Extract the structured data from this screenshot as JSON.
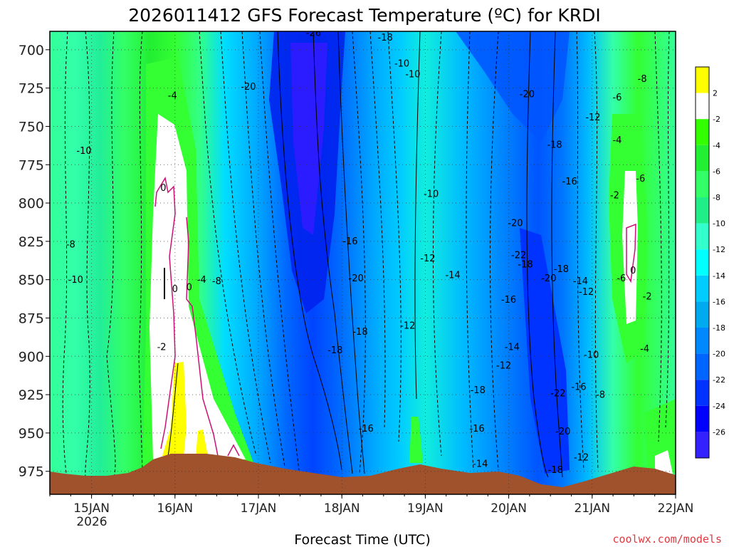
{
  "chart_data": {
    "type": "heatmap",
    "title": "2026011412 GFS Forecast Temperature (ºC) for KRDI",
    "xlabel": "Forecast Time (UTC)",
    "ylabel": "",
    "credit": "coolwx.com/models",
    "x_ticks": [
      "15JAN",
      "16JAN",
      "17JAN",
      "18JAN",
      "19JAN",
      "20JAN",
      "21JAN",
      "22JAN"
    ],
    "x_year": "2026",
    "xlim": [
      14.5,
      22.0
    ],
    "y_ticks": [
      "700",
      "725",
      "750",
      "775",
      "800",
      "825",
      "850",
      "875",
      "900",
      "925",
      "950",
      "975"
    ],
    "ylim": [
      688,
      990
    ],
    "y_inverted": true,
    "grid": true,
    "colorbar": {
      "labels": [
        "2",
        "-2",
        "-4",
        "-6",
        "-8",
        "-10",
        "-12",
        "-14",
        "-16",
        "-18",
        "-20",
        "-22",
        "-24",
        "-26"
      ],
      "colors": [
        "#ffff00",
        "#ffffff",
        "#33ff00",
        "#22ee33",
        "#33ff66",
        "#22ee88",
        "#33ffcc",
        "#00ffff",
        "#00ccff",
        "#00aaee",
        "#0088ff",
        "#0066ff",
        "#0033ff",
        "#0000ff",
        "#3322ff"
      ]
    },
    "contour_labels": [
      {
        "text": "-26",
        "t": 17.66,
        "p": 691
      },
      {
        "text": "-18",
        "t": 18.52,
        "p": 694
      },
      {
        "text": "-20",
        "t": 16.88,
        "p": 726
      },
      {
        "text": "-10",
        "t": 18.72,
        "p": 711
      },
      {
        "text": "-10",
        "t": 18.85,
        "p": 718
      },
      {
        "text": "-20",
        "t": 20.22,
        "p": 731
      },
      {
        "text": "-8",
        "t": 21.6,
        "p": 721
      },
      {
        "text": "-6",
        "t": 21.3,
        "p": 733
      },
      {
        "text": "-4",
        "t": 15.97,
        "p": 732
      },
      {
        "text": "-12",
        "t": 21.01,
        "p": 746
      },
      {
        "text": "-10",
        "t": 14.91,
        "p": 768
      },
      {
        "text": "-18",
        "t": 20.55,
        "p": 764
      },
      {
        "text": "-4",
        "t": 21.3,
        "p": 761
      },
      {
        "text": "-6",
        "t": 21.58,
        "p": 786
      },
      {
        "text": "-16",
        "t": 20.73,
        "p": 788
      },
      {
        "text": "-2",
        "t": 21.27,
        "p": 797
      },
      {
        "text": "0",
        "t": 15.86,
        "p": 792
      },
      {
        "text": "-10",
        "t": 19.07,
        "p": 796
      },
      {
        "text": "-20",
        "t": 20.08,
        "p": 815
      },
      {
        "text": "-16",
        "t": 18.1,
        "p": 827
      },
      {
        "text": "-8",
        "t": 14.75,
        "p": 829
      },
      {
        "text": "-22",
        "t": 20.12,
        "p": 836
      },
      {
        "text": "-12",
        "t": 19.03,
        "p": 838
      },
      {
        "text": "-18",
        "t": 20.2,
        "p": 842
      },
      {
        "text": "-18",
        "t": 20.63,
        "p": 845
      },
      {
        "text": "-14",
        "t": 19.33,
        "p": 849
      },
      {
        "text": "-20",
        "t": 18.17,
        "p": 851
      },
      {
        "text": "-20",
        "t": 20.48,
        "p": 851
      },
      {
        "text": "-6",
        "t": 21.35,
        "p": 851
      },
      {
        "text": "0",
        "t": 21.49,
        "p": 846
      },
      {
        "text": "-10",
        "t": 14.81,
        "p": 852
      },
      {
        "text": "-4",
        "t": 16.32,
        "p": 852
      },
      {
        "text": "-8",
        "t": 16.5,
        "p": 853
      },
      {
        "text": "-14",
        "t": 20.86,
        "p": 853
      },
      {
        "text": "0",
        "t": 16.0,
        "p": 858
      },
      {
        "text": "0",
        "t": 16.17,
        "p": 857
      },
      {
        "text": "-12",
        "t": 20.93,
        "p": 860
      },
      {
        "text": "-2",
        "t": 21.66,
        "p": 863
      },
      {
        "text": "-16",
        "t": 20.0,
        "p": 865
      },
      {
        "text": "-12",
        "t": 18.79,
        "p": 882
      },
      {
        "text": "-18",
        "t": 18.22,
        "p": 886
      },
      {
        "text": "-2",
        "t": 15.84,
        "p": 896
      },
      {
        "text": "-18",
        "t": 17.92,
        "p": 898
      },
      {
        "text": "-14",
        "t": 20.04,
        "p": 896
      },
      {
        "text": "-4",
        "t": 21.63,
        "p": 897
      },
      {
        "text": "-10",
        "t": 20.99,
        "p": 901
      },
      {
        "text": "-12",
        "t": 19.94,
        "p": 908
      },
      {
        "text": "-18",
        "t": 19.63,
        "p": 924
      },
      {
        "text": "-16",
        "t": 20.84,
        "p": 922
      },
      {
        "text": "-22",
        "t": 20.59,
        "p": 926
      },
      {
        "text": "-8",
        "t": 21.1,
        "p": 927
      },
      {
        "text": "-16",
        "t": 18.29,
        "p": 949
      },
      {
        "text": "-16",
        "t": 19.62,
        "p": 949
      },
      {
        "text": "-20",
        "t": 20.65,
        "p": 951
      },
      {
        "text": "-12",
        "t": 20.87,
        "p": 968
      },
      {
        "text": "-14",
        "t": 19.66,
        "p": 972
      },
      {
        "text": "-18",
        "t": 20.56,
        "p": 976
      }
    ]
  },
  "colors": {
    "terrain": "#a0522d",
    "freezing_contour": "#cc1177",
    "contour": "#000000",
    "credit": "#e0383f"
  }
}
